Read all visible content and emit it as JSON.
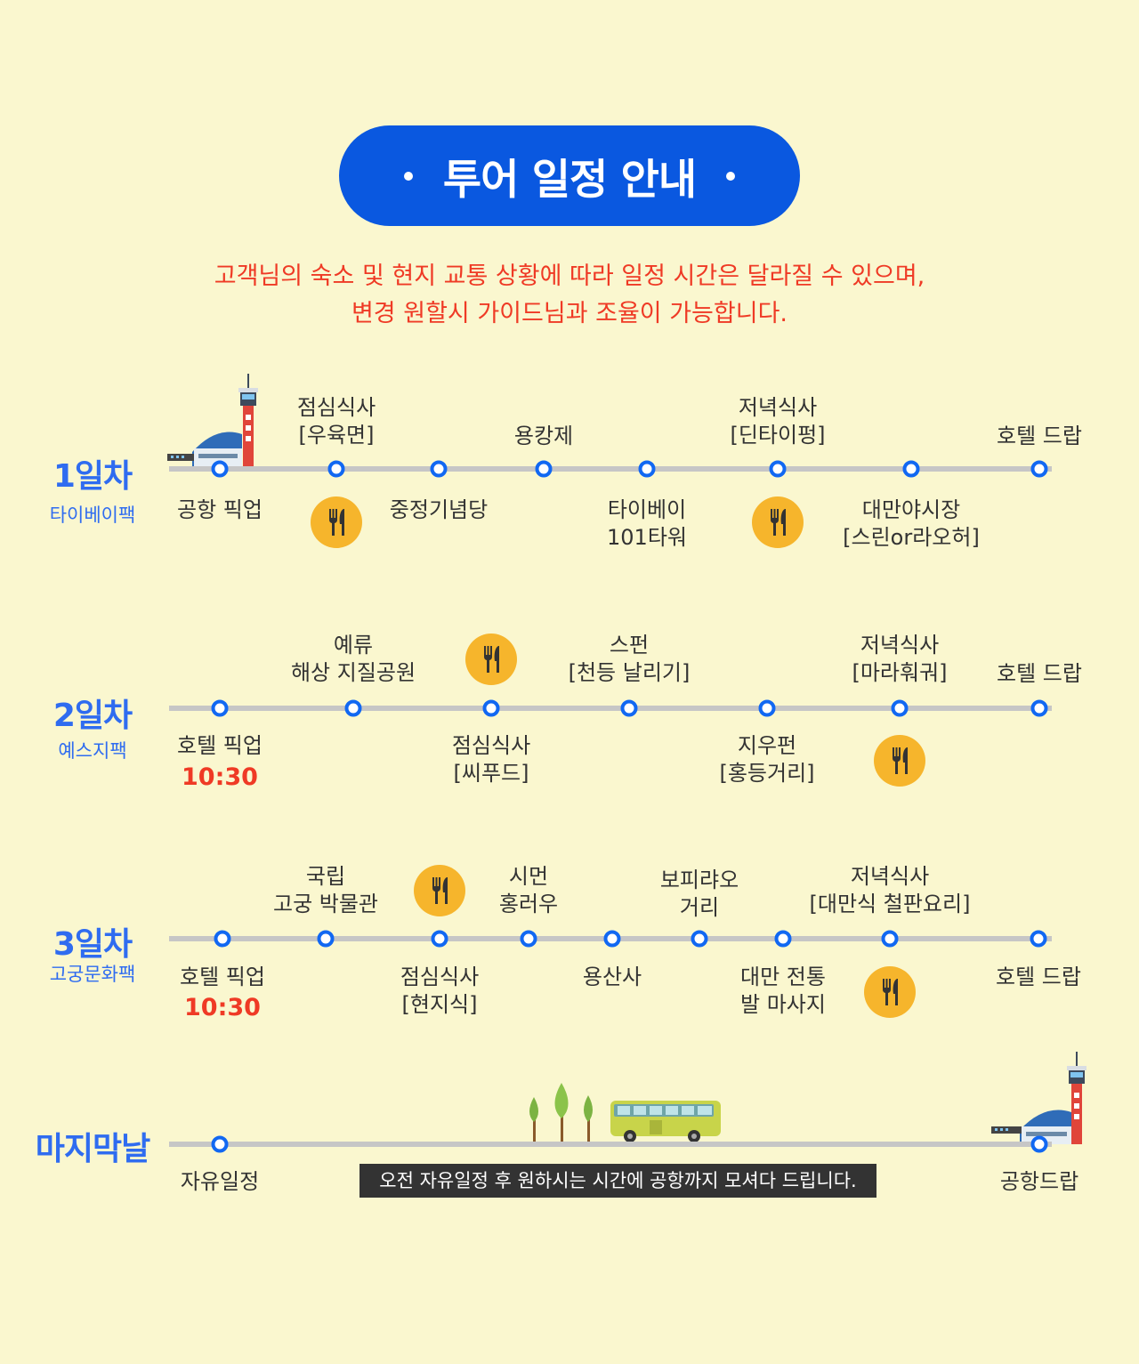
{
  "title": "투어 일정 안내",
  "notice": {
    "line1": "고객님의 숙소 및 현지 교통 상황에 따라 일정 시간은 달라질 수 있으며,",
    "line2": "변경 원할시 가이드님과 조율이 가능합니다."
  },
  "colors": {
    "background": "#faf7cf",
    "title_bg": "#0a58e0",
    "accent_blue": "#2f6cf0",
    "notice_red": "#ef3a25",
    "meal_orange": "#f6b52c"
  },
  "day1": {
    "label": "1일차",
    "sub": "타이베이팩",
    "above": {
      "lunch_l1": "점심식사",
      "lunch_l2": "[우육면]",
      "yongkang": "용캉제",
      "dinner_l1": "저녁식사",
      "dinner_l2": "[딘타이펑]",
      "hotel_drop": "호텔 드랍"
    },
    "below": {
      "airport_pickup": "공항 픽업",
      "memorial": "중정기념당",
      "t101_l1": "타이베이",
      "t101_l2": "101타워",
      "market_l1": "대만야시장",
      "market_l2": "[스린or라오허]"
    }
  },
  "day2": {
    "label": "2일차",
    "sub": "예스지팩",
    "above": {
      "yehliu_l1": "예류",
      "yehliu_l2": "해상 지질공원",
      "sky_l1": "스펀",
      "sky_l2": "[천등 날리기]",
      "dinner_l1": "저녁식사",
      "dinner_l2": "[마라훠궈]",
      "hotel_drop": "호텔 드랍"
    },
    "below": {
      "hotel_pickup": "호텔 픽업",
      "time": "10:30",
      "lunch_l1": "점심식사",
      "lunch_l2": "[씨푸드]",
      "jiufen_l1": "지우펀",
      "jiufen_l2": "[홍등거리]"
    }
  },
  "day3": {
    "label": "3일차",
    "sub": "고궁문화팩",
    "above": {
      "museum_l1": "국립",
      "museum_l2": "고궁 박물관",
      "ximen_l1": "시먼",
      "ximen_l2": "홍러우",
      "bopiliao_l1": "보피랴오",
      "bopiliao_l2": "거리",
      "dinner_l1": "저녁식사",
      "dinner_l2": "[대만식 철판요리]"
    },
    "below": {
      "hotel_pickup": "호텔 픽업",
      "time": "10:30",
      "lunch_l1": "점심식사",
      "lunch_l2": "[현지식]",
      "longshan": "용산사",
      "massage_l1": "대만 전통",
      "massage_l2": "발 마사지",
      "hotel_drop": "호텔 드랍"
    }
  },
  "last_day": {
    "label": "마지막날",
    "free": "자유일정",
    "banner": "오전 자유일정 후 원하시는 시간에 공항까지 모셔다 드립니다.",
    "airport_drop": "공항드랍"
  },
  "icons": [
    "airport-icon",
    "fork-knife-icon",
    "tree-icon",
    "bus-icon"
  ]
}
